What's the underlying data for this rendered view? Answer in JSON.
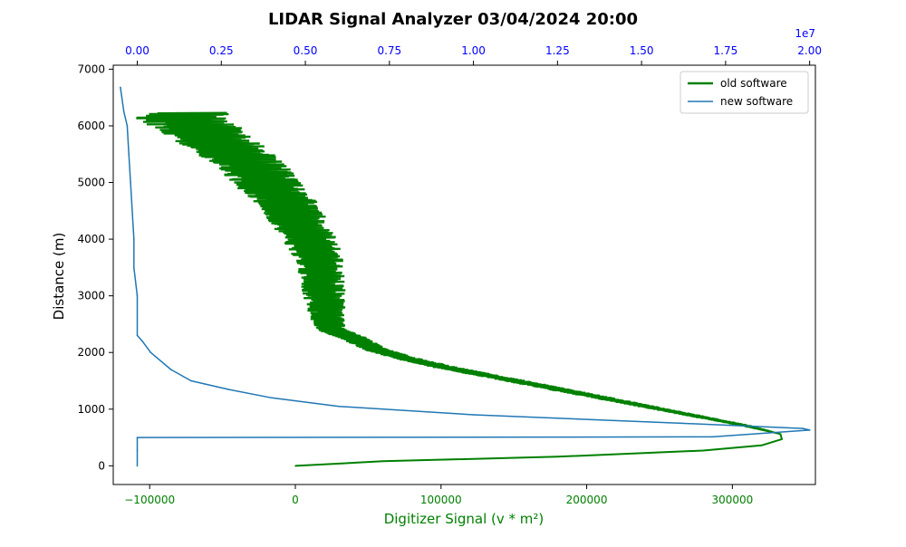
{
  "chart_data": {
    "type": "line",
    "title": "LIDAR Signal Analyzer 03/04/2024 20:00",
    "xlabel": "Digitizer Signal (v * m²)",
    "ylabel": "Distance (m)",
    "grid": false,
    "legend_position": "top-right",
    "bottom_axis": {
      "range": [
        -125000,
        357000
      ],
      "ticks": [
        -100000,
        0,
        100000,
        200000,
        300000
      ],
      "tick_labels": [
        "−100000",
        "0",
        "100000",
        "200000",
        "300000"
      ],
      "color": "#008000"
    },
    "top_axis": {
      "range": [
        -0.0714,
        2.0171
      ],
      "ticks": [
        0.0,
        0.25,
        0.5,
        0.75,
        1.0,
        1.25,
        1.5,
        1.75,
        2.0
      ],
      "tick_labels": [
        "0.00",
        "0.25",
        "0.50",
        "0.75",
        "1.00",
        "1.25",
        "1.50",
        "1.75",
        "2.00"
      ],
      "offset_label": "1e7",
      "color": "#0000ff"
    },
    "y_axis": {
      "range": [
        -330,
        7070
      ],
      "ticks": [
        0,
        1000,
        2000,
        3000,
        4000,
        5000,
        6000,
        7000
      ],
      "tick_labels": [
        "0",
        "1000",
        "2000",
        "3000",
        "4000",
        "5000",
        "6000",
        "7000"
      ]
    },
    "series": [
      {
        "name": "old software",
        "axis": "bottom",
        "color": "#008000",
        "noisy_band": true,
        "x": [
          0,
          60000,
          180000,
          280000,
          320000,
          334000,
          333000,
          310000,
          280000,
          250000,
          220000,
          190000,
          160000,
          130000,
          100000,
          75000,
          55000,
          40000,
          25000,
          22000,
          20000,
          18000,
          14000,
          5000,
          -5000,
          -20000,
          -35000,
          -60000,
          -80000
        ],
        "y": [
          0,
          80,
          160,
          270,
          360,
          470,
          560,
          700,
          850,
          1000,
          1150,
          1300,
          1450,
          1600,
          1750,
          1900,
          2050,
          2250,
          2400,
          2600,
          3000,
          3400,
          3800,
          4200,
          4600,
          5000,
          5400,
          5800,
          6230
        ],
        "noise": [
          0,
          0,
          0,
          0,
          0,
          0,
          0,
          2000,
          3000,
          4000,
          5000,
          6000,
          6000,
          6000,
          7000,
          7000,
          8000,
          9000,
          10000,
          12000,
          15000,
          16000,
          18000,
          20000,
          22000,
          24000,
          26000,
          30000,
          35000
        ]
      },
      {
        "name": "new software",
        "axis": "top",
        "color": "#1f77b4",
        "x": [
          0.0,
          0.0,
          0.0,
          1.71,
          2.0,
          1.98,
          1.62,
          1.0,
          0.6,
          0.4,
          0.27,
          0.16,
          0.1,
          0.04,
          0.015,
          0.0,
          0.0,
          -0.01,
          -0.01,
          -0.02,
          -0.025,
          -0.03,
          -0.04,
          -0.05
        ],
        "y": [
          0,
          270,
          500,
          510,
          630,
          660,
          750,
          900,
          1050,
          1200,
          1350,
          1500,
          1700,
          2000,
          2200,
          2300,
          3000,
          3500,
          4000,
          5000,
          5500,
          6000,
          6250,
          6680
        ]
      }
    ]
  }
}
